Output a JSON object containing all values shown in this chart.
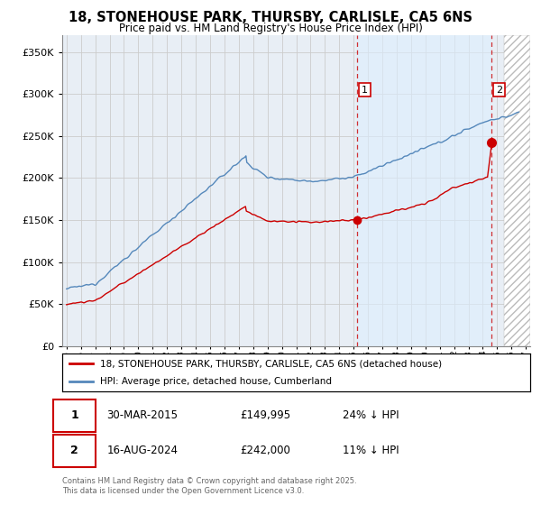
{
  "title": "18, STONEHOUSE PARK, THURSBY, CARLISLE, CA5 6NS",
  "subtitle": "Price paid vs. HM Land Registry's House Price Index (HPI)",
  "legend_line1": "18, STONEHOUSE PARK, THURSBY, CARLISLE, CA5 6NS (detached house)",
  "legend_line2": "HPI: Average price, detached house, Cumberland",
  "annotation1_label": "1",
  "annotation1_date": "30-MAR-2015",
  "annotation1_price": "£149,995",
  "annotation1_hpi": "24% ↓ HPI",
  "annotation2_label": "2",
  "annotation2_date": "16-AUG-2024",
  "annotation2_price": "£242,000",
  "annotation2_hpi": "11% ↓ HPI",
  "footer": "Contains HM Land Registry data © Crown copyright and database right 2025.\nThis data is licensed under the Open Government Licence v3.0.",
  "red_color": "#cc0000",
  "blue_color": "#5588bb",
  "blue_fill": "#ddeeff",
  "grid_color": "#cccccc",
  "bg_color": "#e8eef5",
  "plot_bg": "#f0f4f8",
  "ylim": [
    0,
    370000
  ],
  "xlim_start": 1994.7,
  "xlim_end": 2027.3,
  "purchase1_year": 2015.25,
  "purchase1_price": 149995,
  "purchase2_year": 2024.625,
  "purchase2_price": 242000,
  "vline1_year": 2015.25,
  "vline2_year": 2024.625,
  "hatch_start": 2025.5
}
